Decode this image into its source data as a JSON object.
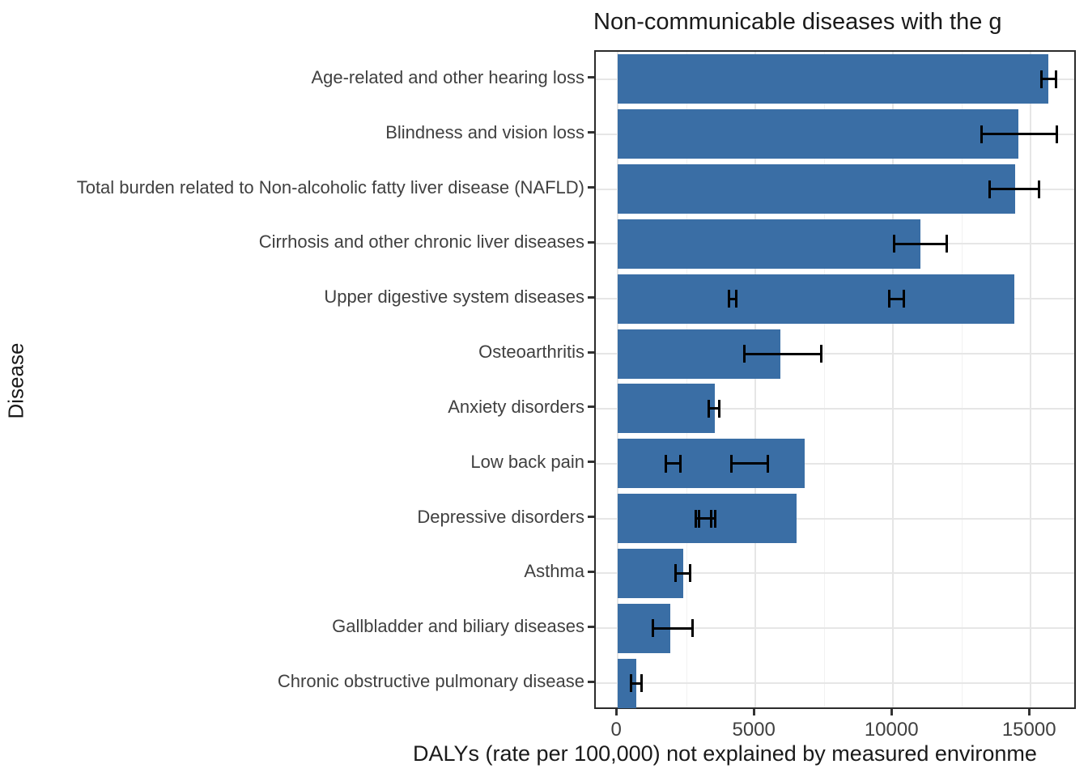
{
  "chart_data": {
    "type": "bar",
    "orientation": "horizontal",
    "title": "Non-communicable diseases with the g",
    "xlabel": "DALYs (rate per 100,000) not explained by measured environme",
    "ylabel": "Disease",
    "xlim": [
      -800,
      16700
    ],
    "x_ticks": [
      0,
      5000,
      10000,
      15000
    ],
    "x_tick_labels": [
      "0",
      "5000",
      "10000",
      "15000"
    ],
    "x_minor_gridlines": [
      2500,
      7500,
      12500
    ],
    "grid": "on",
    "legend": "none",
    "bar_color": "#3a6ea5",
    "categories": [
      {
        "label": "Age-related and other hearing loss",
        "value": 15650,
        "errors": [
          [
            15380,
            15910
          ]
        ]
      },
      {
        "label": "Blindness and vision loss",
        "value": 14550,
        "errors": [
          [
            13200,
            15940
          ]
        ]
      },
      {
        "label": "Total burden related to Non-alcoholic fatty liver disease (NAFLD)",
        "value": 14450,
        "errors": [
          [
            13500,
            15300
          ]
        ]
      },
      {
        "label": "Cirrhosis and other chronic liver diseases",
        "value": 11000,
        "errors": [
          [
            10050,
            11950
          ]
        ]
      },
      {
        "label": "Upper digestive system diseases",
        "value": 14400,
        "errors": [
          [
            4030,
            4300
          ],
          [
            9850,
            10400
          ]
        ]
      },
      {
        "label": "Osteoarthritis",
        "value": 5900,
        "errors": [
          [
            4600,
            7400
          ]
        ]
      },
      {
        "label": "Anxiety disorders",
        "value": 3530,
        "errors": [
          [
            3300,
            3680
          ]
        ]
      },
      {
        "label": "Low back pain",
        "value": 6800,
        "errors": [
          [
            1740,
            2260
          ],
          [
            4120,
            5440
          ]
        ]
      },
      {
        "label": "Depressive disorders",
        "value": 6500,
        "errors": [
          [
            2820,
            3400
          ],
          [
            2950,
            3530
          ]
        ]
      },
      {
        "label": "Asthma",
        "value": 2380,
        "errors": [
          [
            2090,
            2620
          ]
        ]
      },
      {
        "label": "Gallbladder and biliary diseases",
        "value": 1910,
        "errors": [
          [
            1260,
            2700
          ]
        ]
      },
      {
        "label": "Chronic obstructive pulmonary disease",
        "value": 680,
        "errors": [
          [
            470,
            850
          ]
        ]
      }
    ]
  },
  "colors": {
    "bar": "#3a6ea5",
    "error_bar": "#000000",
    "grid_major": "#e6e6e6",
    "grid_minor": "#f2f2f2",
    "panel_border": "#2b2b2b",
    "axis_text": "#404040",
    "title_text": "#1a1a1a"
  }
}
